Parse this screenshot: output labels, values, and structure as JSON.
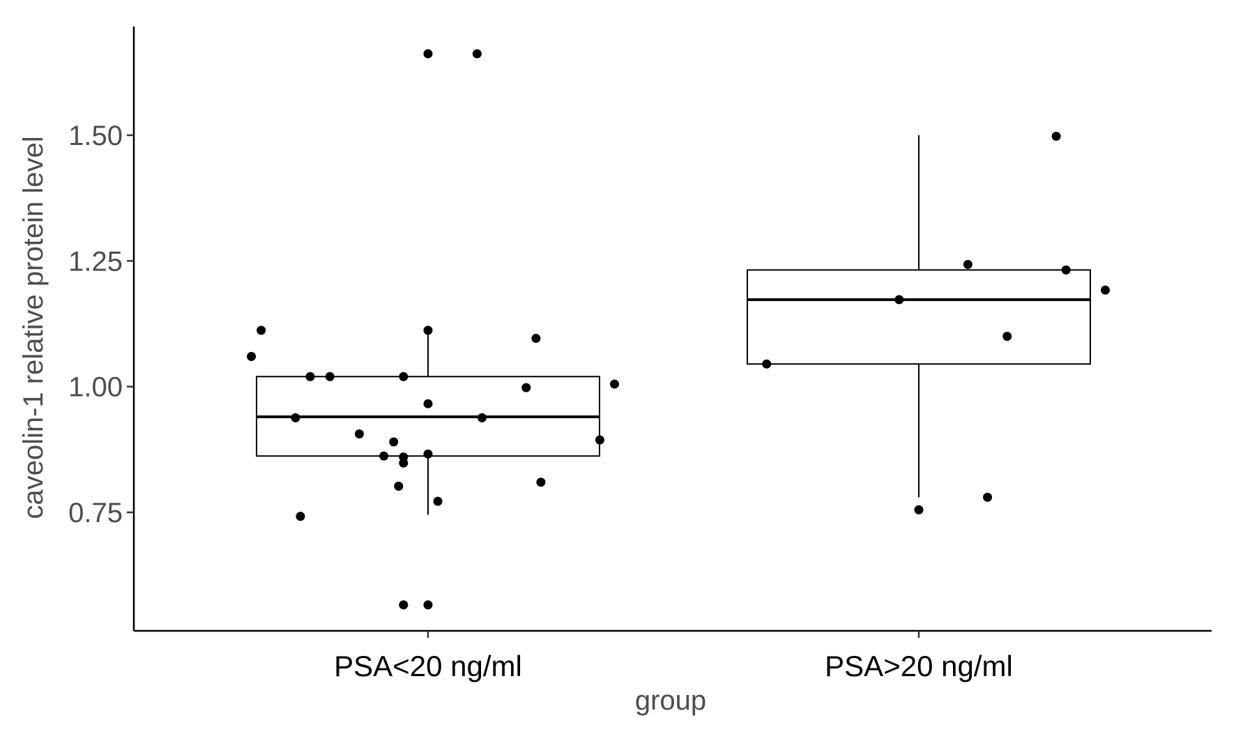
{
  "chart_data": {
    "type": "boxplot",
    "title": "",
    "xlabel": "group",
    "ylabel": "caveolin-1 relative protein level",
    "ylim": [
      0.53,
      1.73
    ],
    "yticks": [
      0.75,
      1.0,
      1.25,
      1.5
    ],
    "ytick_labels": [
      "0.75",
      "1.00",
      "1.25",
      "1.50"
    ],
    "grid": false,
    "legend": "none",
    "colors": {
      "box_fill": "#ffffff",
      "stroke": "#000000",
      "point": "#000000"
    },
    "groups": [
      {
        "label": "PSA<20 ng/ml",
        "box": {
          "whisker_low": 0.745,
          "q1": 0.862,
          "median": 0.94,
          "q3": 1.02,
          "whisker_high": 1.112
        },
        "points": [
          {
            "x_jitter": -0.36,
            "y": 1.06
          },
          {
            "x_jitter": -0.34,
            "y": 1.112
          },
          {
            "x_jitter": -0.27,
            "y": 0.938
          },
          {
            "x_jitter": -0.26,
            "y": 0.742
          },
          {
            "x_jitter": -0.24,
            "y": 1.02
          },
          {
            "x_jitter": -0.2,
            "y": 1.02
          },
          {
            "x_jitter": -0.14,
            "y": 0.906
          },
          {
            "x_jitter": -0.09,
            "y": 0.862
          },
          {
            "x_jitter": -0.07,
            "y": 0.89
          },
          {
            "x_jitter": -0.06,
            "y": 0.802
          },
          {
            "x_jitter": -0.05,
            "y": 0.86
          },
          {
            "x_jitter": -0.05,
            "y": 0.848
          },
          {
            "x_jitter": -0.05,
            "y": 1.02
          },
          {
            "x_jitter": -0.05,
            "y": 0.566
          },
          {
            "x_jitter": 0.0,
            "y": 1.662
          },
          {
            "x_jitter": 0.0,
            "y": 0.566
          },
          {
            "x_jitter": 0.0,
            "y": 1.112
          },
          {
            "x_jitter": 0.0,
            "y": 0.966
          },
          {
            "x_jitter": 0.0,
            "y": 0.866
          },
          {
            "x_jitter": 0.02,
            "y": 0.772
          },
          {
            "x_jitter": 0.1,
            "y": 1.662
          },
          {
            "x_jitter": 0.11,
            "y": 0.938
          },
          {
            "x_jitter": 0.2,
            "y": 0.998
          },
          {
            "x_jitter": 0.22,
            "y": 1.096
          },
          {
            "x_jitter": 0.23,
            "y": 0.81
          },
          {
            "x_jitter": 0.35,
            "y": 0.894
          },
          {
            "x_jitter": 0.38,
            "y": 1.005
          }
        ]
      },
      {
        "label": "PSA>20 ng/ml",
        "box": {
          "whisker_low": 0.78,
          "q1": 1.045,
          "median": 1.173,
          "q3": 1.232,
          "whisker_high": 1.5
        },
        "points": [
          {
            "x_jitter": -0.31,
            "y": 1.045
          },
          {
            "x_jitter": -0.04,
            "y": 1.173
          },
          {
            "x_jitter": 0.0,
            "y": 0.755
          },
          {
            "x_jitter": 0.1,
            "y": 1.243
          },
          {
            "x_jitter": 0.14,
            "y": 0.78
          },
          {
            "x_jitter": 0.18,
            "y": 1.1
          },
          {
            "x_jitter": 0.28,
            "y": 1.498
          },
          {
            "x_jitter": 0.3,
            "y": 1.232
          },
          {
            "x_jitter": 0.38,
            "y": 1.192
          }
        ]
      }
    ]
  }
}
